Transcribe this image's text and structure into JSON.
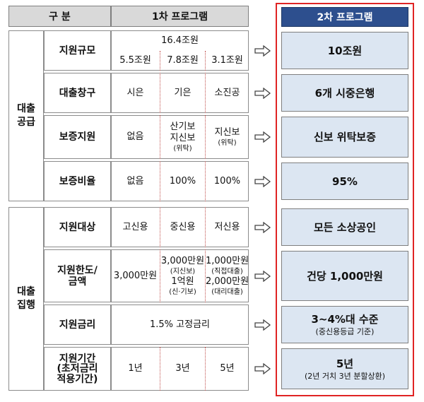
{
  "header": {
    "category": "구 분",
    "program1": "1차 프로그램",
    "program2": "2차 프로그램"
  },
  "groups": [
    {
      "label": [
        "대출",
        "공급"
      ],
      "rows": [
        {
          "label": [
            "지원규모"
          ],
          "program1_total": "16.4조원",
          "program1": [
            [
              "5.5조원"
            ],
            [
              "7.8조원"
            ],
            [
              "3.1조원"
            ]
          ],
          "program2": [
            "10조원"
          ]
        },
        {
          "label": [
            "대출창구"
          ],
          "program1": [
            [
              "시은"
            ],
            [
              "기은"
            ],
            [
              "소진공"
            ]
          ],
          "program2": [
            "6개 시중은행"
          ]
        },
        {
          "label": [
            "보증지원"
          ],
          "program1": [
            [
              "없음"
            ],
            [
              "산기보",
              "지신보",
              "(위탁)"
            ],
            [
              "지신보",
              "(위탁)"
            ]
          ],
          "program2": [
            "신보 위탁보증"
          ]
        },
        {
          "label": [
            "보증비율"
          ],
          "program1": [
            [
              "없음"
            ],
            [
              "100%"
            ],
            [
              "100%"
            ]
          ],
          "program2": [
            "95%"
          ]
        }
      ]
    },
    {
      "label": [
        "대출",
        "집행"
      ],
      "rows": [
        {
          "label": [
            "지원대상"
          ],
          "program1": [
            [
              "고신용"
            ],
            [
              "중신용"
            ],
            [
              "저신용"
            ]
          ],
          "program2": [
            "모든 소상공인"
          ]
        },
        {
          "label": [
            "지원한도/",
            "금액"
          ],
          "program1": [
            [
              "3,000만원"
            ],
            [
              "3,000만원",
              "(지신보)",
              "1억원",
              "(신·기보)"
            ],
            [
              "1,000만원",
              "(직접대출)",
              "2,000만원",
              "(대리대출)"
            ]
          ],
          "program2": [
            "건당 1,000만원"
          ]
        },
        {
          "label": [
            "지원금리"
          ],
          "program1": [
            [
              "1.5% 고정금리"
            ]
          ],
          "program2": [
            "3~4%대 수준",
            "(중신용등급 기준)"
          ]
        },
        {
          "label": [
            "지원기간",
            "(초저금리",
            "적용기간)"
          ],
          "program1": [
            [
              "1년"
            ],
            [
              "3년"
            ],
            [
              "5년"
            ]
          ],
          "program2": [
            "5년",
            "(2년 거치 3년 분할상환)"
          ]
        }
      ]
    }
  ]
}
